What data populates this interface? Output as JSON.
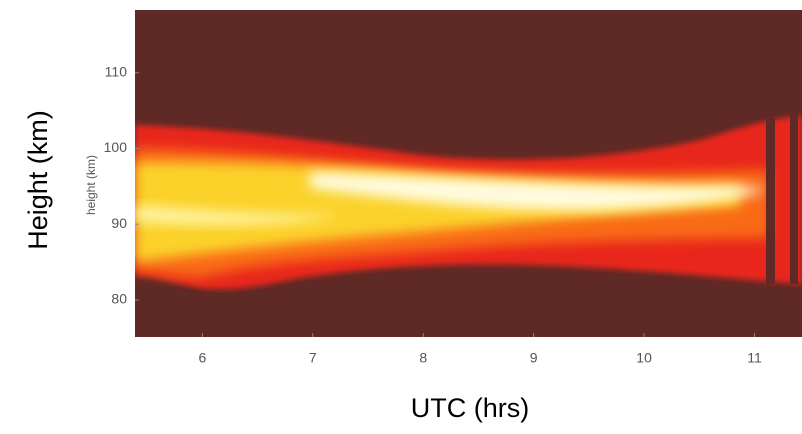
{
  "chart_data": {
    "type": "heatmap",
    "x_label": "UTC (hrs)",
    "y_label": "Height (km)",
    "inner_y_label": "height (km)",
    "xlim": [
      5.39,
      11.43
    ],
    "ylim": [
      75.1,
      118.3
    ],
    "xticks": [
      6,
      7,
      8,
      9,
      10,
      11
    ],
    "yticks": [
      80,
      90,
      100,
      110
    ]
  }
}
